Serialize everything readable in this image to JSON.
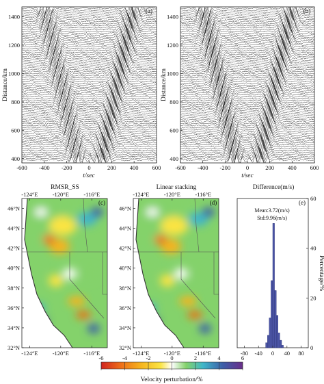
{
  "chart_data": [
    {
      "type": "line",
      "panel_label": "(a)",
      "xlabel": "t/sec",
      "ylabel": "Distance/km",
      "xlim": [
        -600,
        600
      ],
      "ylim": [
        370,
        1470
      ],
      "xticks": [
        "-600",
        "-400",
        "-200",
        "0",
        "200",
        "400",
        "600"
      ],
      "yticks": [
        "400",
        "600",
        "800",
        "1000",
        "1200",
        "1400"
      ],
      "series_note": "",
      "moveout_velocity_km_s": 3.7
    },
    {
      "type": "line",
      "panel_label": "(b)",
      "xlabel": "t/sec",
      "ylabel": "Distance/km",
      "xlim": [
        -600,
        600
      ],
      "ylim": [
        370,
        1470
      ],
      "xticks": [
        "-600",
        "-400",
        "-200",
        "0",
        "200",
        "400",
        "600"
      ],
      "yticks": [
        "400",
        "600",
        "800",
        "1000",
        "1200",
        "1400"
      ],
      "moveout_velocity_km_s": 3.7
    },
    {
      "type": "heatmap",
      "panel_label": "(c)",
      "title": "RMSR_SS",
      "xticks": [
        "-124°E",
        "-120°E",
        "-116°E"
      ],
      "yticks": [
        "46°N",
        "44°N",
        "42°N",
        "40°N",
        "38°N",
        "36°N",
        "34°N",
        "32°N"
      ],
      "lon_range": [
        -125,
        -114
      ],
      "lat_range": [
        32,
        47
      ]
    },
    {
      "type": "heatmap",
      "panel_label": "(d)",
      "title": "Linear stacking",
      "xticks": [
        "-124°E",
        "-120°E",
        "-116°E"
      ],
      "yticks": [
        "46°N",
        "44°N",
        "42°N",
        "40°N",
        "38°N",
        "36°N",
        "34°N",
        "32°N"
      ],
      "lon_range": [
        -125,
        -114
      ],
      "lat_range": [
        32,
        47
      ]
    },
    {
      "type": "bar",
      "panel_label": "(e)",
      "title": "Difference(m/s)",
      "ylabel": "Percentage/%",
      "xticks": [
        "-80",
        "-40",
        "0",
        "40",
        "80"
      ],
      "yticks": [
        "0",
        "20",
        "40",
        "60"
      ],
      "xlim": [
        -100,
        100
      ],
      "ylim": [
        0,
        60
      ],
      "bin_edges": [
        -20,
        -15,
        -10,
        -5,
        0,
        5,
        10,
        15,
        20,
        25,
        30
      ],
      "values": [
        2,
        5,
        12,
        27,
        50,
        23,
        13,
        6,
        3,
        1
      ],
      "stats": {
        "mean": "Mean:3.72(m/s)",
        "std": "Std:9.96(m/s)"
      },
      "bar_color": "#4b55a6"
    }
  ],
  "colorbar": {
    "label": "Velocity perturbation/%",
    "ticks": [
      "-6",
      "-4",
      "-2",
      "0",
      "2",
      "4",
      "6"
    ],
    "range": [
      -6,
      6
    ],
    "colors": [
      "#d1241f",
      "#ee6f19",
      "#f6b41e",
      "#fbe443",
      "#ffffff",
      "#84d26b",
      "#3fb6c9",
      "#3d5ea8",
      "#6a2e8a"
    ]
  }
}
